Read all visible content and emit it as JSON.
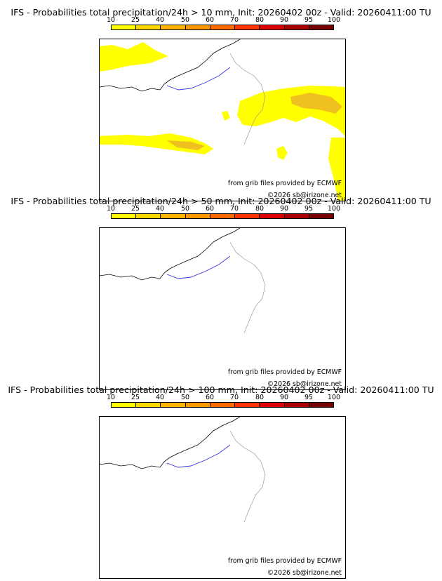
{
  "panels": [
    {
      "title": "IFS - Probabilities total precipitation/24h > 10 mm, Init: 20260402 00z - Valid: 20260411:00 TU",
      "has_precip": true
    },
    {
      "title": "IFS - Probabilities total precipitation/24h > 50 mm, Init: 20260402 00z - Valid: 20260411:00 TU",
      "has_precip": false
    },
    {
      "title": "IFS - Probabilities total precipitation/24h > 100 mm, Init: 20260402 00z - Valid: 20260411:00 TU",
      "has_precip": false
    }
  ],
  "scale": {
    "labels": [
      "10",
      "25",
      "40",
      "50",
      "60",
      "70",
      "80",
      "90",
      "95",
      "100"
    ],
    "colors": [
      "#ffff00",
      "#ffd700",
      "#ffb300",
      "#ff9800",
      "#ff6a00",
      "#ff3300",
      "#dd0000",
      "#aa0000",
      "#770000"
    ]
  },
  "credits": {
    "source": "from grib files provided by ECMWF",
    "copyright": "©2026 sb@irizone.net"
  },
  "colors": {
    "coast": "#000000",
    "rivers": "#3333dd",
    "borders": "#999999",
    "precip_low": "#ffff00",
    "precip_mid": "#f0c020"
  }
}
